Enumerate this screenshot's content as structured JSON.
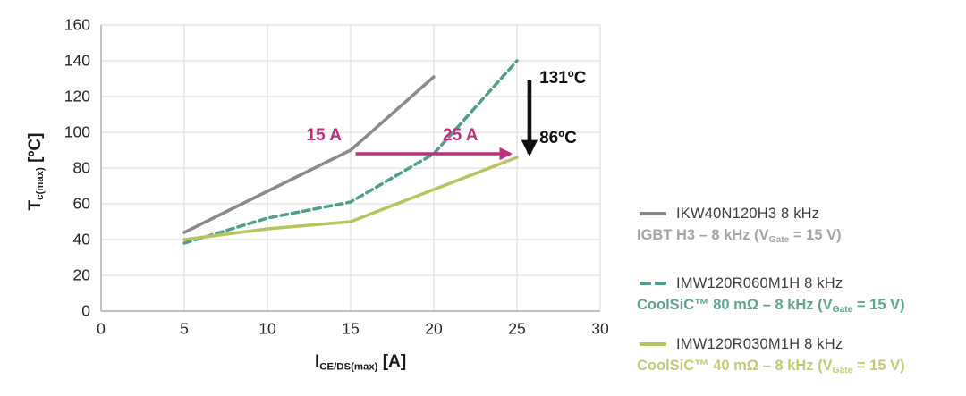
{
  "figure": {
    "background": "#ffffff"
  },
  "chart_data": {
    "type": "line",
    "title": "",
    "xlabel_main": "I",
    "xlabel_sub": "CE/DS(max)",
    "xlabel_unit": "[A]",
    "ylabel_main": "T",
    "ylabel_sub": "c(max)",
    "ylabel_unit": "[ºC]",
    "xlim": [
      0,
      30
    ],
    "ylim": [
      0,
      160
    ],
    "x_ticks": [
      0,
      5,
      10,
      15,
      20,
      25,
      30
    ],
    "y_ticks": [
      0,
      20,
      40,
      60,
      80,
      100,
      120,
      140,
      160
    ],
    "grid": true,
    "grid_color": "#d9d9d9",
    "axis_color": "#ababab",
    "tick_color": "#262626",
    "legend_position": "right",
    "series": [
      {
        "name": "IKW40N120H3 8 kHz (IGBT H3)",
        "color": "#8f888b",
        "style": "solid",
        "points": [
          [
            5,
            44
          ],
          [
            10,
            67
          ],
          [
            15,
            90
          ],
          [
            20,
            131
          ]
        ]
      },
      {
        "name": "IMW120R060M1H 8 kHz (CoolSiC 80 mOhm)",
        "color": "#4f9e8e",
        "style": "dashed",
        "points": [
          [
            5,
            38
          ],
          [
            10,
            52
          ],
          [
            15,
            61
          ],
          [
            20,
            88
          ],
          [
            25,
            140
          ]
        ]
      },
      {
        "name": "IMW120R030M1H 8 kHz (CoolSiC 40 mOhm)",
        "color": "#b8c35e",
        "style": "solid",
        "points": [
          [
            5,
            40
          ],
          [
            10,
            46
          ],
          [
            15,
            50
          ],
          [
            20,
            68
          ],
          [
            25,
            86
          ]
        ]
      }
    ],
    "annotations": {
      "texts": [
        {
          "id": "label-15a",
          "text": "15 A",
          "x": 13.4,
          "y": 98,
          "color": "#bf2e7d",
          "anchor": "middle"
        },
        {
          "id": "label-25a",
          "text": "25 A",
          "x": 21.6,
          "y": 98,
          "color": "#bf2e7d",
          "anchor": "middle"
        },
        {
          "id": "label-131c",
          "text": "131ºC",
          "x": 26.35,
          "y": 130,
          "color": "#111111",
          "anchor": "start"
        },
        {
          "id": "label-86c",
          "text": "86ºC",
          "x": 26.35,
          "y": 96.5,
          "color": "#111111",
          "anchor": "start"
        }
      ],
      "arrows": [
        {
          "id": "arrow-current-shift",
          "x1": 15.3,
          "y1": 88,
          "x2": 24.6,
          "y2": 88,
          "color": "#bf2e7d",
          "width": 3.6
        },
        {
          "id": "arrow-temp-drop",
          "x1": 25.75,
          "y1": 129,
          "x2": 25.75,
          "y2": 88,
          "color": "#111111",
          "width": 4.6
        }
      ]
    }
  },
  "legend": {
    "entries": [
      {
        "title": "IKW40N120H3 8 kHz",
        "subtitle_pre": "IGBT H3 – 8 kHz (V",
        "subtitle_sub": "Gate",
        "subtitle_post": " = 15 V)",
        "line_color": "#8f888b",
        "text_color": "#a8a2a4",
        "swatch": "solid"
      },
      {
        "title": "IMW120R060M1H 8 kHz",
        "subtitle_pre": "CoolSiC™ 80 mΩ – 8 kHz (V",
        "subtitle_sub": "Gate",
        "subtitle_post": " = 15 V)",
        "line_color": "#4f9e8e",
        "text_color": "#5fa392",
        "swatch": "dashed"
      },
      {
        "title": "IMW120R030M1H 8 kHz",
        "subtitle_pre": "CoolSiC™ 40 mΩ – 8 kHz (V",
        "subtitle_sub": "Gate",
        "subtitle_post": " = 15 V)",
        "line_color": "#b8c35e",
        "text_color": "#c3cb72",
        "swatch": "solid"
      }
    ]
  }
}
